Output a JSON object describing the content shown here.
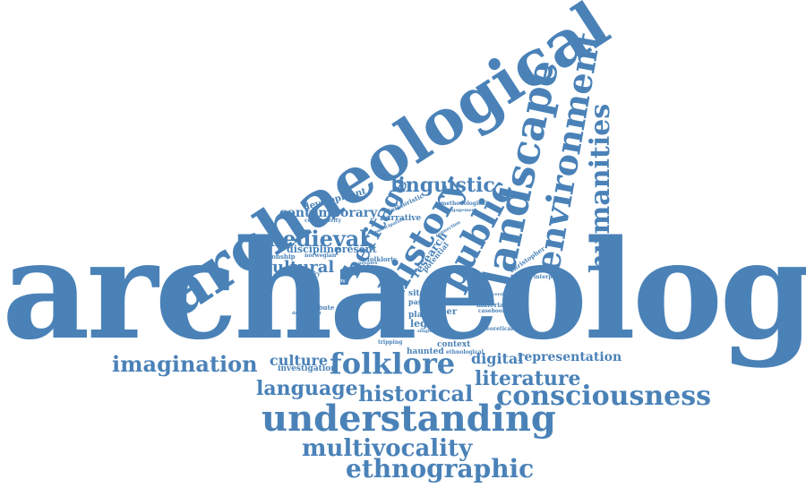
{
  "palette": {
    "primary": "#4a82b8",
    "dark": "#3a6fa5",
    "light": "#6d9dcc"
  },
  "words": {
    "archaeology": "archaeology",
    "archaeological": "archaeological",
    "landscape": "landscape",
    "environment": "environment",
    "humanities": "humanities",
    "public": "public",
    "history": "history",
    "heritage": "heritage",
    "linguistic": "linguistic",
    "contemporary": "contemporary",
    "medieval": "medieval",
    "cultural": "cultural",
    "development": "development",
    "connectivity": "connectivity",
    "discipline": "discipline",
    "present": "present",
    "relationship": "relationship",
    "norwegian": "norwegian",
    "narrative": "narrative",
    "folkloristic": "folkloristic",
    "research": "research",
    "potential": "potential",
    "methodological": "methodological",
    "engagement": "engagement",
    "connection": "connection",
    "participation": "participation",
    "folkloric": "folkloric",
    "peoples": "peoples",
    "christopher": "christopher",
    "interpretive": "interpretive",
    "disciplinary": "disciplinary",
    "identity": "identity",
    "contribute": "contribute",
    "department": "department",
    "site": "site",
    "past": "past",
    "paper": "paper",
    "place": "place",
    "legend": "legend",
    "singing": "singing",
    "material": "material",
    "casebook": "casebook",
    "theoretical": "theoretical",
    "diversity": "diversity",
    "tripping": "tripping",
    "context": "context",
    "haunted": "haunted",
    "ethnological": "ethnological",
    "imagination": "imagination",
    "culture": "culture",
    "investigation": "investigation",
    "folklore": "folklore",
    "digital": "digital",
    "representation": "representation",
    "literature": "literature",
    "language": "language",
    "historical": "historical",
    "consciousness": "consciousness",
    "understanding": "understanding",
    "multivocality": "multivocality",
    "ethnographic": "ethnographic"
  }
}
